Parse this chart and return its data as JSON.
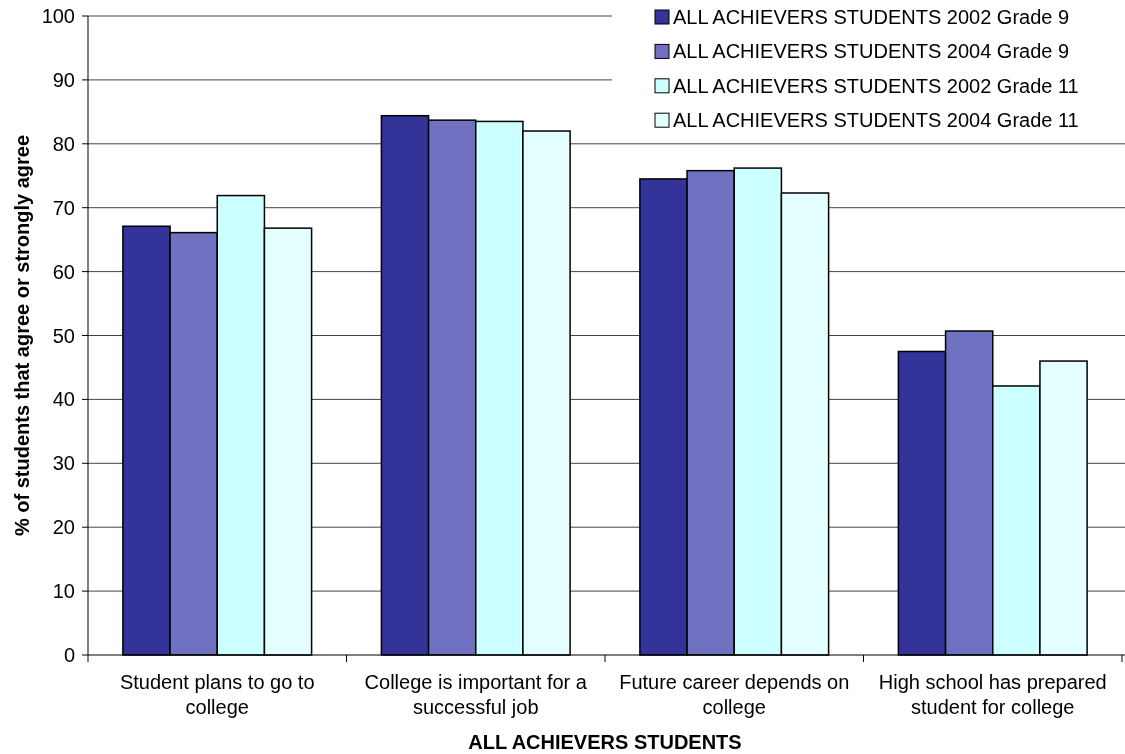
{
  "chart_data": {
    "type": "bar",
    "xlabel": "ALL ACHIEVERS STUDENTS",
    "ylabel": "% of students that agree or strongly agree",
    "categories": [
      "Student plans to go to college",
      "College is important for a successful job",
      "Future career depends on college",
      "High school has prepared student for college"
    ],
    "series": [
      {
        "name": "ALL ACHIEVERS STUDENTS 2002 Grade 9",
        "color": "#333399",
        "values": [
          67.1,
          84.4,
          74.5,
          47.5
        ]
      },
      {
        "name": "ALL ACHIEVERS STUDENTS 2004 Grade 9",
        "color": "#7070c0",
        "values": [
          66.1,
          83.7,
          75.8,
          50.7
        ]
      },
      {
        "name": "ALL ACHIEVERS STUDENTS 2002 Grade 11",
        "color": "#ccffff",
        "values": [
          71.9,
          83.5,
          76.2,
          42.1
        ]
      },
      {
        "name": "ALL ACHIEVERS STUDENTS 2004 Grade 11",
        "color": "#e4ffff",
        "values": [
          66.8,
          82.0,
          72.3,
          46.0
        ]
      }
    ],
    "ylim": [
      0,
      100
    ],
    "yticks": [
      0,
      10,
      20,
      30,
      40,
      50,
      60,
      70,
      80,
      90,
      100
    ],
    "grid": "y",
    "legend": "top right"
  }
}
